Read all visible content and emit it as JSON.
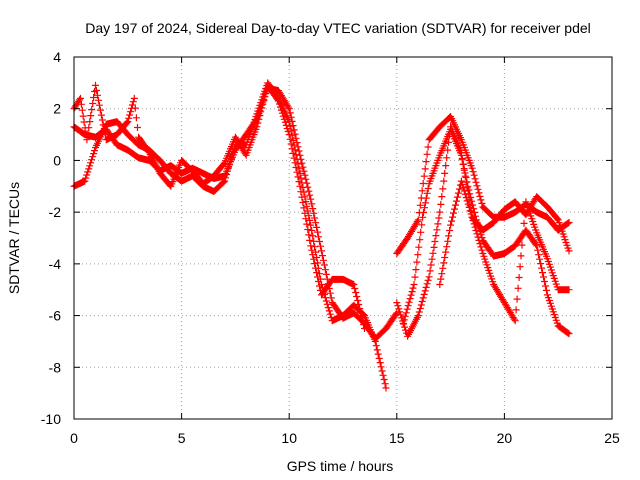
{
  "chart_data": {
    "type": "scatter",
    "title": "Day 197 of 2024, Sidereal Day-to-day VTEC variation (SDTVAR) for receiver pdel",
    "xlabel": "GPS time / hours",
    "ylabel": "SDTVAR / TECUs",
    "xlim": [
      0,
      25
    ],
    "ylim": [
      -10,
      4
    ],
    "xticks": [
      0,
      5,
      10,
      15,
      20,
      25
    ],
    "yticks": [
      -10,
      -8,
      -6,
      -4,
      -2,
      0,
      2,
      4
    ],
    "grid": true,
    "marker": "+",
    "color": "#ff0000",
    "series": [
      {
        "name": "trace-1",
        "x": [
          0.0,
          0.5,
          1.0,
          1.5,
          2.0,
          2.5,
          3.0,
          3.5,
          4.0,
          4.5,
          5.0,
          5.5,
          6.0,
          6.5,
          7.0,
          7.5,
          8.0,
          8.5,
          9.0,
          9.5,
          10.0,
          10.5,
          11.0,
          11.5,
          12.0,
          12.5,
          13.0,
          13.5,
          14.0,
          14.5,
          15.0
        ],
        "y": [
          1.3,
          1.0,
          0.9,
          1.2,
          0.6,
          0.4,
          0.1,
          0.0,
          -0.4,
          -0.2,
          -0.5,
          -0.3,
          -0.5,
          -0.7,
          -0.6,
          0.4,
          1.0,
          1.6,
          2.8,
          2.7,
          2.0,
          0.2,
          -1.5,
          -3.5,
          -5.5,
          -6.1,
          -5.9,
          -6.3,
          -6.9,
          -6.5,
          -5.9
        ]
      },
      {
        "name": "trace-2",
        "x": [
          0.0,
          0.5,
          1.0,
          1.5,
          2.0,
          2.5,
          3.0,
          3.5,
          4.0,
          4.5,
          5.0,
          5.5,
          6.0,
          6.5,
          7.0,
          7.5,
          8.0,
          8.5,
          9.0,
          9.5,
          10.0,
          10.5,
          11.0,
          11.5,
          12.0,
          12.5,
          13.0,
          13.5,
          14.0,
          14.5
        ],
        "y": [
          -1.0,
          -0.8,
          0.5,
          1.4,
          1.5,
          1.0,
          0.6,
          0.4,
          0.0,
          -0.5,
          -0.8,
          -0.6,
          -1.0,
          -1.2,
          -0.8,
          0.6,
          0.6,
          1.8,
          3.0,
          2.4,
          1.5,
          -0.5,
          -2.5,
          -4.8,
          -6.2,
          -6.0,
          -5.6,
          -6.0,
          -7.0,
          -8.8
        ]
      },
      {
        "name": "trace-3",
        "x": [
          0.0,
          0.3,
          0.6,
          1.0,
          1.5,
          2.0,
          2.5,
          2.8,
          3.0,
          3.5,
          4.0,
          4.5,
          5.0,
          5.5,
          6.0,
          6.5,
          7.0,
          7.5,
          8.0,
          8.5,
          9.0,
          9.5,
          10.0,
          10.5,
          11.0,
          11.5,
          12.0,
          12.5,
          13.0,
          13.5
        ],
        "y": [
          2.0,
          2.4,
          0.8,
          2.9,
          0.8,
          1.0,
          1.5,
          2.4,
          0.9,
          0.3,
          -0.5,
          -1.0,
          0.0,
          -0.4,
          -0.9,
          -0.6,
          -0.1,
          0.9,
          0.2,
          1.3,
          2.9,
          2.3,
          1.0,
          -1.0,
          -3.3,
          -5.2,
          -4.6,
          -4.6,
          -4.8,
          -6.5
        ]
      },
      {
        "name": "trace-4",
        "x": [
          15.0,
          15.5,
          16.0,
          16.5,
          17.0,
          17.5,
          18.0,
          18.5,
          19.0,
          19.5,
          20.0,
          20.5,
          21.0,
          21.5,
          22.0,
          22.5,
          23.0
        ],
        "y": [
          -3.6,
          -3.0,
          -2.3,
          0.8,
          1.3,
          1.7,
          0.8,
          -0.3,
          -1.8,
          -2.2,
          -2.2,
          -2.0,
          -1.7,
          -2.0,
          -2.2,
          -2.7,
          -2.4
        ]
      },
      {
        "name": "trace-5",
        "x": [
          15.3,
          15.8,
          16.2,
          16.5,
          17.0,
          17.5,
          18.0,
          18.3,
          18.7,
          19.0,
          19.5,
          20.0,
          20.5,
          21.0,
          21.5,
          22.0,
          22.5,
          23.0
        ],
        "y": [
          -6.3,
          -4.8,
          -2.2,
          -0.9,
          0.2,
          1.2,
          0.2,
          -1.0,
          -2.3,
          -3.1,
          -3.7,
          -3.6,
          -3.3,
          -2.7,
          -3.3,
          -5.2,
          -6.4,
          -6.7
        ]
      },
      {
        "name": "trace-6",
        "x": [
          15.0,
          15.5,
          16.0,
          16.5,
          17.0,
          17.5,
          18.0,
          18.5,
          19.0,
          19.5,
          20.0,
          20.5,
          21.0,
          21.5,
          22.0,
          22.5,
          23.0
        ],
        "y": [
          -5.5,
          -6.8,
          -6.0,
          -4.5,
          -2.0,
          1.3,
          0.3,
          -2.2,
          -3.6,
          -4.8,
          -5.5,
          -6.2,
          -1.6,
          -2.8,
          -3.8,
          -5.0,
          -5.0
        ]
      },
      {
        "name": "trace-7",
        "x": [
          17.0,
          17.5,
          18.0,
          18.5,
          19.0,
          19.5,
          20.0,
          20.5,
          21.0,
          21.5,
          22.0,
          22.5,
          23.0
        ],
        "y": [
          -4.8,
          -2.5,
          -0.8,
          -2.2,
          -2.7,
          -2.4,
          -1.9,
          -1.6,
          -2.1,
          -1.4,
          -1.8,
          -2.3,
          -3.5
        ]
      }
    ]
  }
}
